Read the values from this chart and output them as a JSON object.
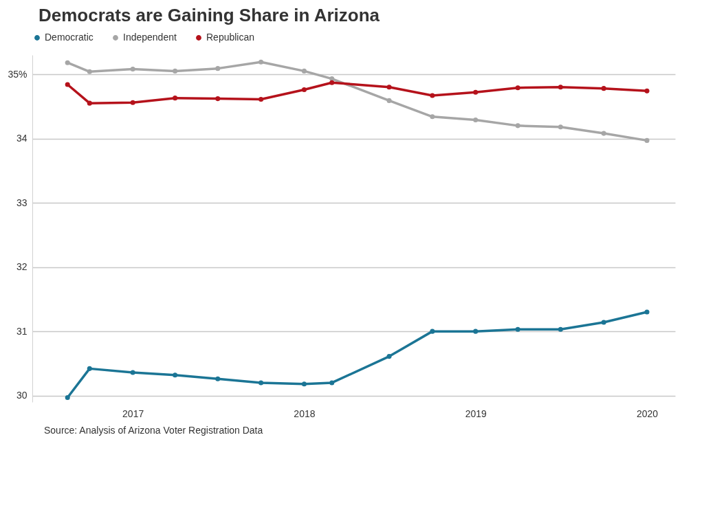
{
  "chart_data": {
    "type": "line",
    "title": "Democrats are Gaining Share in Arizona",
    "x": [
      "2016-08-15",
      "2016-10",
      "2017-01",
      "2017-04",
      "2017-07",
      "2017-10",
      "2018-01",
      "2018-03",
      "2018-07",
      "2018-10",
      "2019-01",
      "2019-04",
      "2019-07",
      "2019-10",
      "2020-01"
    ],
    "series": [
      {
        "name": "Democratic",
        "color": "#1b7595",
        "values": [
          29.97,
          30.42,
          30.36,
          30.32,
          30.26,
          30.2,
          30.18,
          30.2,
          30.61,
          31.0,
          31.0,
          31.03,
          31.03,
          31.14,
          31.3
        ]
      },
      {
        "name": "Independent",
        "color": "#a6a6a6",
        "values": [
          35.18,
          35.04,
          35.08,
          35.05,
          35.09,
          35.19,
          35.05,
          34.93,
          34.59,
          34.34,
          34.29,
          34.2,
          34.18,
          34.08,
          33.97
        ]
      },
      {
        "name": "Republican",
        "color": "#b5121b",
        "values": [
          34.84,
          34.55,
          34.56,
          34.63,
          34.62,
          34.61,
          34.76,
          34.87,
          34.8,
          34.67,
          34.72,
          34.79,
          34.8,
          34.78,
          34.74
        ]
      }
    ],
    "xlim": [
      "2016-06",
      "2020-03"
    ],
    "xticks": [
      {
        "value": "2017-01-01",
        "label": "2017"
      },
      {
        "value": "2018-01-01",
        "label": "2018"
      },
      {
        "value": "2019-01-01",
        "label": "2019"
      },
      {
        "value": "2020-01-01",
        "label": "2020"
      }
    ],
    "ylim": [
      29.9,
      35.3
    ],
    "yticks": [
      30,
      31,
      32,
      33,
      34,
      {
        "value": 35,
        "label": "35%"
      }
    ],
    "grid": "y",
    "legend": "top",
    "marker": "circle",
    "line_style": "solid",
    "annotations": [
      "Source: Analysis of Arizona Voter Registration Data"
    ]
  }
}
